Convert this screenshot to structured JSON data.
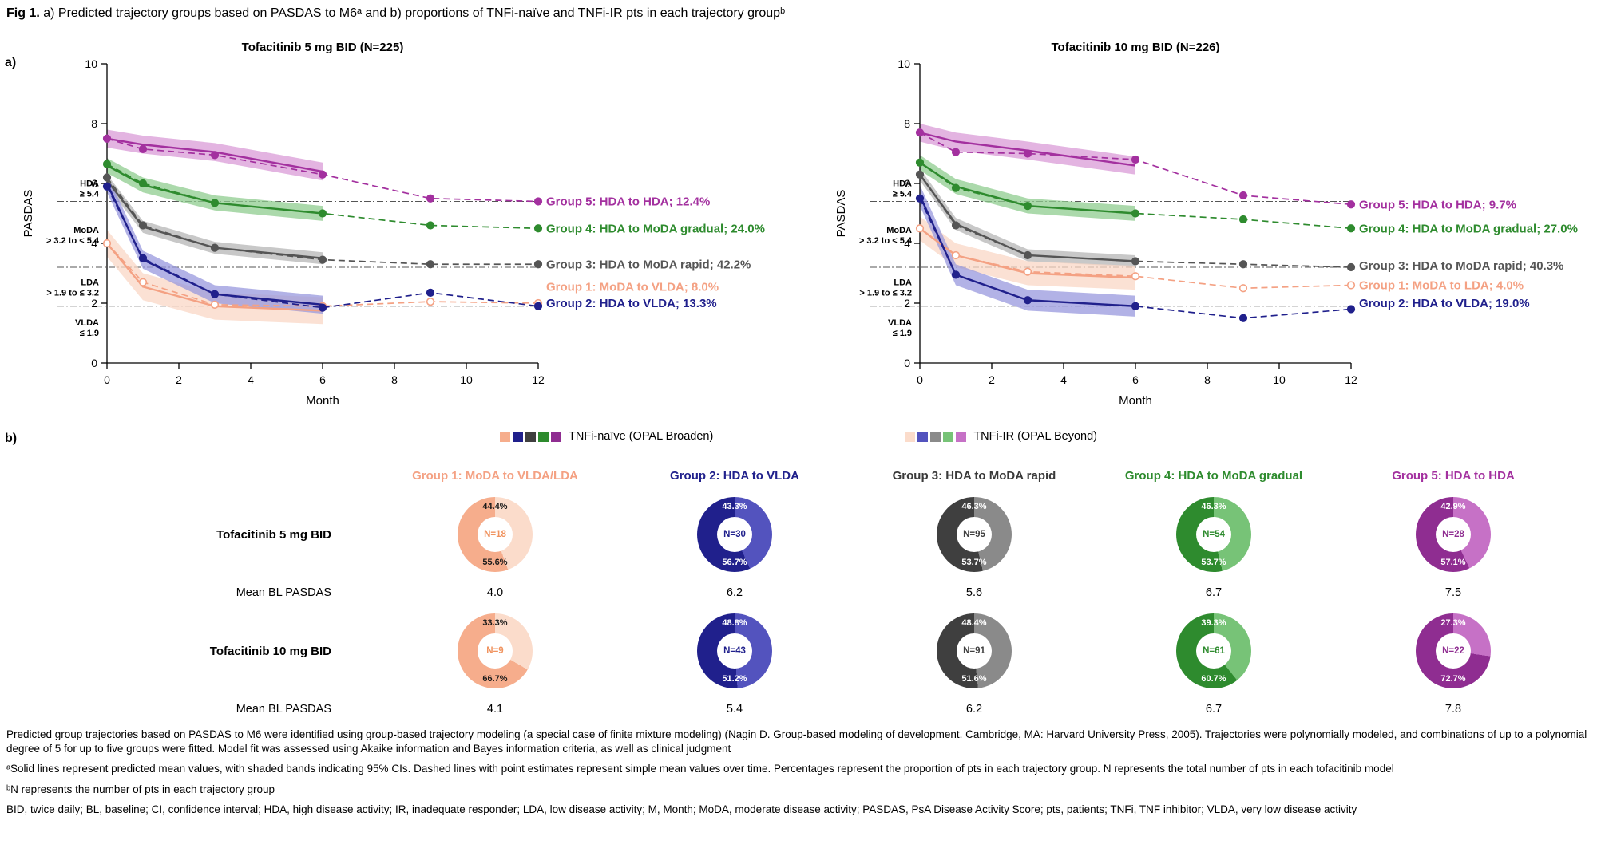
{
  "title": {
    "prefix": "Fig 1.",
    "text": " a) Predicted trajectory groups based on PASDAS to M6ᵃ and b) proportions of TNFi-naïve and TNFi-IR pts in each trajectory groupᵇ"
  },
  "panel_labels": {
    "a": "a)",
    "b": "b)"
  },
  "axis": {
    "y_label": "PASDAS",
    "x_label": "Month",
    "ylim": [
      0,
      10
    ],
    "xlim": [
      0,
      12
    ],
    "y_ticks": [
      0,
      2,
      4,
      6,
      8,
      10
    ],
    "x_ticks": [
      0,
      2,
      4,
      6,
      8,
      10,
      12
    ],
    "zones": [
      {
        "name": "HDA",
        "range": "≥ 5.4",
        "line": 5.4,
        "center": 5.85
      },
      {
        "name": "MoDA",
        "range": "> 3.2 to < 5.4",
        "line": 3.2,
        "center": 4.3
      },
      {
        "name": "LDA",
        "range": "> 1.9 to ≤ 3.2",
        "line": 1.9,
        "center": 2.55
      },
      {
        "name": "VLDA",
        "range": "≤ 1.9",
        "line": null,
        "center": 1.2
      }
    ]
  },
  "chart_data": [
    {
      "type": "line",
      "title": "Tofacitinib 5 mg BID (N=225)",
      "x_solid": [
        0,
        1,
        3,
        6
      ],
      "x_dashed": [
        0,
        1,
        3,
        6,
        9,
        12
      ],
      "series": [
        {
          "id": "group5",
          "label": "Group 5: HDA to HDA; 12.4%",
          "color": "#A3309F",
          "band": "#D99BD7",
          "marker": "filled",
          "ci": 0.3,
          "solid": [
            7.5,
            7.3,
            7.05,
            6.4
          ],
          "dashed": [
            7.5,
            7.15,
            6.95,
            6.3,
            5.5,
            5.4
          ],
          "label_y": 5.4
        },
        {
          "id": "group4",
          "label": "Group 4: HDA to MoDA gradual; 24.0%",
          "color": "#2E8B2E",
          "band": "#8FCC8F",
          "marker": "filled",
          "ci": 0.25,
          "solid": [
            6.6,
            5.95,
            5.35,
            5.0
          ],
          "dashed": [
            6.65,
            6.0,
            5.35,
            5.0,
            4.6,
            4.5
          ],
          "label_y": 4.5
        },
        {
          "id": "group3",
          "label": "Group 3: HDA to MoDA rapid; 42.2%",
          "color": "#555555",
          "band": "#B5B5B5",
          "marker": "filled",
          "ci": 0.2,
          "solid": [
            6.1,
            4.55,
            3.85,
            3.5
          ],
          "dashed": [
            6.2,
            4.6,
            3.85,
            3.45,
            3.3,
            3.3
          ],
          "label_y": 3.3
        },
        {
          "id": "group1",
          "label": "Group 1: MoDA to VLDA; 8.0%",
          "color": "#F4A183",
          "band": "#FAD7C5",
          "marker": "open",
          "ci": 0.45,
          "solid": [
            4.0,
            2.55,
            1.9,
            1.75
          ],
          "dashed": [
            4.0,
            2.7,
            1.95,
            1.9,
            2.05,
            2.0
          ],
          "label_y": 2.55
        },
        {
          "id": "group2",
          "label": "Group 2: HDA to VLDA; 13.3%",
          "color": "#20208C",
          "band": "#9898DD",
          "marker": "filled",
          "ci": 0.3,
          "solid": [
            6.0,
            3.45,
            2.3,
            1.95
          ],
          "dashed": [
            5.9,
            3.5,
            2.3,
            1.85,
            2.35,
            1.9
          ],
          "label_y": 2.0
        }
      ]
    },
    {
      "type": "line",
      "title": "Tofacitinib 10 mg BID (N=226)",
      "x_solid": [
        0,
        1,
        3,
        6
      ],
      "x_dashed": [
        0,
        1,
        3,
        6,
        9,
        12
      ],
      "series": [
        {
          "id": "group5",
          "label": "Group 5: HDA to HDA; 9.7%",
          "color": "#A3309F",
          "band": "#D99BD7",
          "marker": "filled",
          "ci": 0.3,
          "solid": [
            7.7,
            7.4,
            7.1,
            6.6
          ],
          "dashed": [
            7.7,
            7.05,
            7.0,
            6.8,
            5.6,
            5.3
          ],
          "label_y": 5.3
        },
        {
          "id": "group4",
          "label": "Group 4: HDA to MoDA gradual; 27.0%",
          "color": "#2E8B2E",
          "band": "#8FCC8F",
          "marker": "filled",
          "ci": 0.25,
          "solid": [
            6.7,
            5.9,
            5.25,
            5.0
          ],
          "dashed": [
            6.7,
            5.85,
            5.25,
            5.0,
            4.8,
            4.5
          ],
          "label_y": 4.5
        },
        {
          "id": "group3",
          "label": "Group 3: HDA to MoDA rapid; 40.3%",
          "color": "#555555",
          "band": "#B5B5B5",
          "marker": "filled",
          "ci": 0.2,
          "solid": [
            6.3,
            4.65,
            3.6,
            3.4
          ],
          "dashed": [
            6.3,
            4.6,
            3.6,
            3.4,
            3.3,
            3.2
          ],
          "label_y": 3.25
        },
        {
          "id": "group1",
          "label": "Group 1: MoDA to LDA; 4.0%",
          "color": "#F4A183",
          "band": "#FAD7C5",
          "marker": "open",
          "ci": 0.4,
          "solid": [
            4.5,
            3.6,
            3.0,
            2.85
          ],
          "dashed": [
            4.5,
            3.6,
            3.05,
            2.9,
            2.5,
            2.6
          ],
          "label_y": 2.6
        },
        {
          "id": "group2",
          "label": "Group 2: HDA to VLDA; 19.0%",
          "color": "#20208C",
          "band": "#9898DD",
          "marker": "filled",
          "ci": 0.35,
          "solid": [
            5.6,
            2.95,
            2.1,
            1.9
          ],
          "dashed": [
            5.5,
            2.95,
            2.1,
            1.9,
            1.5,
            1.8
          ],
          "label_y": 2.0
        }
      ]
    },
    {
      "type": "donut",
      "rows": [
        {
          "row_label": "Tofacitinib 5 mg BID",
          "donuts": [
            {
              "n": "N=18",
              "top_pct": "44.4%",
              "bottom_pct": "55.6%",
              "top_value": 44.4,
              "light": "#FBDCCB",
              "dark": "#F6AD8C",
              "n_color": "#F0935F",
              "top_text": "#1A1A1A",
              "bottom_text": "#1A1A1A"
            },
            {
              "n": "N=30",
              "top_pct": "43.3%",
              "bottom_pct": "56.7%",
              "top_value": 43.3,
              "light": "#5353BE",
              "dark": "#20208C",
              "n_color": "#20208C",
              "top_text": "#ffffff",
              "bottom_text": "#ffffff"
            },
            {
              "n": "N=95",
              "top_pct": "46.3%",
              "bottom_pct": "53.7%",
              "top_value": 46.3,
              "light": "#8A8A8A",
              "dark": "#3F3F3F",
              "n_color": "#3F3F3F",
              "top_text": "#ffffff",
              "bottom_text": "#ffffff"
            },
            {
              "n": "N=54",
              "top_pct": "46.3%",
              "bottom_pct": "53.7%",
              "top_value": 46.3,
              "light": "#77C377",
              "dark": "#2E8B2E",
              "n_color": "#2E8B2E",
              "top_text": "#ffffff",
              "bottom_text": "#ffffff"
            },
            {
              "n": "N=28",
              "top_pct": "42.9%",
              "bottom_pct": "57.1%",
              "top_value": 42.9,
              "light": "#C671C6",
              "dark": "#8F2D91",
              "n_color": "#8F2D91",
              "top_text": "#ffffff",
              "bottom_text": "#ffffff"
            }
          ],
          "means": [
            "4.0",
            "6.2",
            "5.6",
            "6.7",
            "7.5"
          ]
        },
        {
          "row_label": "Tofacitinib 10 mg BID",
          "donuts": [
            {
              "n": "N=9",
              "top_pct": "33.3%",
              "bottom_pct": "66.7%",
              "top_value": 33.3,
              "light": "#FBDCCB",
              "dark": "#F6AD8C",
              "n_color": "#F0935F",
              "top_text": "#1A1A1A",
              "bottom_text": "#1A1A1A"
            },
            {
              "n": "N=43",
              "top_pct": "48.8%",
              "bottom_pct": "51.2%",
              "top_value": 48.8,
              "light": "#5353BE",
              "dark": "#20208C",
              "n_color": "#20208C",
              "top_text": "#ffffff",
              "bottom_text": "#ffffff"
            },
            {
              "n": "N=91",
              "top_pct": "48.4%",
              "bottom_pct": "51.6%",
              "top_value": 48.4,
              "light": "#8A8A8A",
              "dark": "#3F3F3F",
              "n_color": "#3F3F3F",
              "top_text": "#ffffff",
              "bottom_text": "#ffffff"
            },
            {
              "n": "N=61",
              "top_pct": "39.3%",
              "bottom_pct": "60.7%",
              "top_value": 39.3,
              "light": "#77C377",
              "dark": "#2E8B2E",
              "n_color": "#2E8B2E",
              "top_text": "#ffffff",
              "bottom_text": "#ffffff"
            },
            {
              "n": "N=22",
              "top_pct": "27.3%",
              "bottom_pct": "72.7%",
              "top_value": 27.3,
              "light": "#C671C6",
              "dark": "#8F2D91",
              "n_color": "#8F2D91",
              "top_text": "#ffffff",
              "bottom_text": "#ffffff"
            }
          ],
          "means": [
            "4.1",
            "5.4",
            "6.2",
            "6.7",
            "7.8"
          ]
        }
      ]
    }
  ],
  "panel_b": {
    "mean_label": "Mean BL PASDAS",
    "legend": [
      {
        "label": "TNFi-naïve (OPAL Broaden)",
        "colors": [
          "#F6AD8C",
          "#20208C",
          "#3F3F3F",
          "#2E8B2E",
          "#8F2D91"
        ]
      },
      {
        "label": "TNFi-IR (OPAL Beyond)",
        "colors": [
          "#FBDCCB",
          "#5353BE",
          "#8A8A8A",
          "#77C377",
          "#C671C6"
        ]
      }
    ],
    "group_headers": [
      {
        "label": "Group 1: MoDA to VLDA/LDA",
        "color": "#F4A183"
      },
      {
        "label": "Group 2: HDA to VLDA",
        "color": "#20208C"
      },
      {
        "label": "Group 3: HDA to MoDA rapid",
        "color": "#3A3A3A"
      },
      {
        "label": "Group 4: HDA to MoDA gradual",
        "color": "#2E8B2E"
      },
      {
        "label": "Group 5: HDA to HDA",
        "color": "#A3309F"
      }
    ]
  },
  "footnotes": [
    "Predicted group trajectories based on PASDAS to M6 were identified using group-based trajectory modeling (a special case of finite mixture modeling) (Nagin D. Group-based modeling of development. Cambridge, MA: Harvard University Press, 2005). Trajectories were polynomially modeled, and combinations of up to a polynomial degree of 5 for up to five groups were fitted. Model fit was assessed using Akaike information and Bayes information criteria, as well as clinical judgment",
    "ᵃSolid lines represent predicted mean values, with shaded bands indicating 95% CIs. Dashed lines with point estimates represent simple mean values over time. Percentages represent the proportion of pts in each trajectory group. N represents the total number of pts in each tofacitinib model",
    "ᵇN represents the number of pts in each trajectory group",
    "BID, twice daily; BL, baseline; CI, confidence interval; HDA, high disease activity; IR, inadequate responder; LDA, low disease activity; M, Month; MoDA, moderate disease activity; PASDAS, PsA Disease Activity Score; pts, patients; TNFi, TNF inhibitor; VLDA, very low disease activity"
  ]
}
